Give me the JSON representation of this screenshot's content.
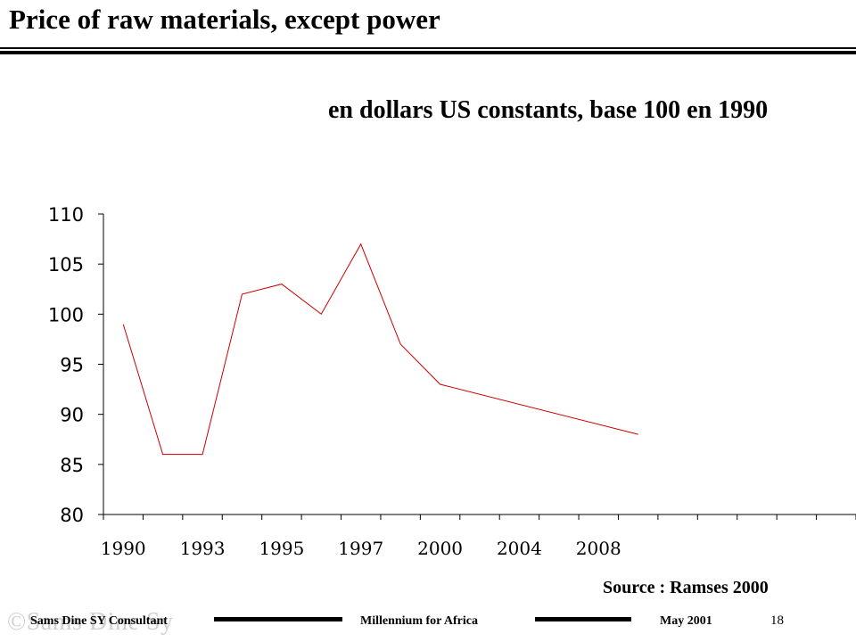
{
  "header": {
    "title": "Price of raw materials, except power"
  },
  "chart_data": {
    "type": "line",
    "title": "en dollars US constants, base 100 en 1990",
    "xlabel": "",
    "ylabel": "",
    "x_tick_labels": [
      "1990",
      "1993",
      "1995",
      "1997",
      "2000",
      "2004",
      "2008"
    ],
    "ylim": [
      80,
      110
    ],
    "y_ticks": [
      80,
      85,
      90,
      95,
      100,
      105,
      110
    ],
    "grid": false,
    "series": [
      {
        "name": "",
        "color": "#cc0000",
        "points": [
          {
            "category_index": 0,
            "value": 99
          },
          {
            "category_index": 1,
            "value": 86
          },
          {
            "category_index": 2,
            "value": 86
          },
          {
            "category_index": 3,
            "value": 102
          },
          {
            "category_index": 4,
            "value": 103
          },
          {
            "category_index": 5,
            "value": 100
          },
          {
            "category_index": 6,
            "value": 107
          },
          {
            "category_index": 7,
            "value": 97
          },
          {
            "category_index": 8,
            "value": 93
          },
          {
            "category_index": 13,
            "value": 88
          }
        ]
      }
    ],
    "category_count": 19
  },
  "source": "Source : Ramses 2000",
  "footer": {
    "author": "Sams Dine SY Consultant",
    "center": "Millennium  for Africa",
    "date": "May 2001",
    "page": "18",
    "watermark": "©Sams Dine Sy"
  }
}
